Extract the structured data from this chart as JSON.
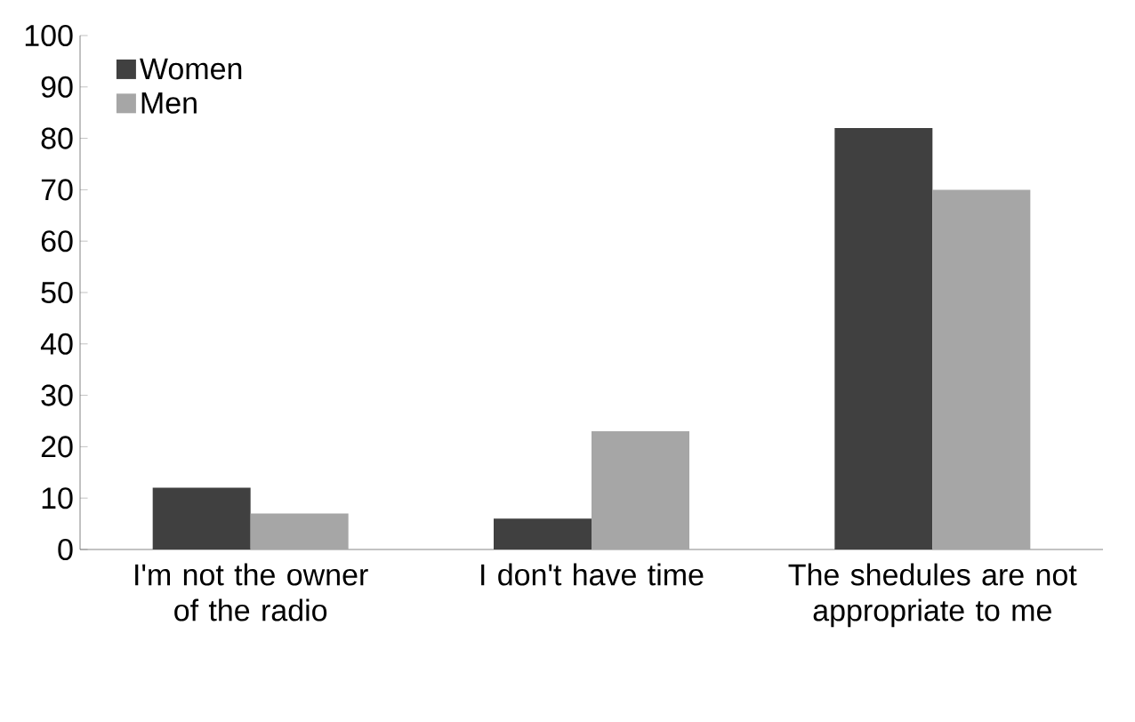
{
  "chart_data": {
    "type": "bar",
    "categories": [
      "I'm not the owner of the radio",
      "I don't have time",
      "The shedules are not appropriate to me"
    ],
    "series": [
      {
        "name": "Women",
        "color": "#404040",
        "values": [
          12,
          6,
          82
        ]
      },
      {
        "name": "Men",
        "color": "#a6a6a6",
        "values": [
          7,
          23,
          70
        ]
      }
    ],
    "ylim": [
      0,
      100
    ],
    "yticks": [
      0,
      10,
      20,
      30,
      40,
      50,
      60,
      70,
      80,
      90,
      100
    ],
    "grid": false,
    "legend": "top left"
  }
}
